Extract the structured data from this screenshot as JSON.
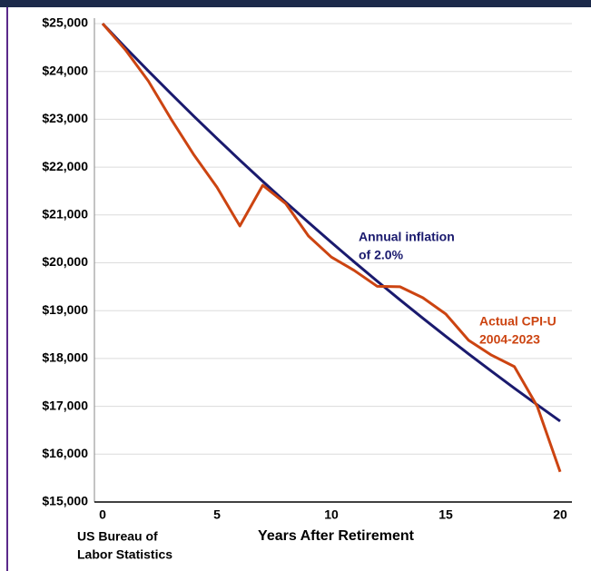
{
  "chart_data": {
    "type": "line",
    "x": [
      0,
      1,
      2,
      3,
      4,
      5,
      6,
      7,
      8,
      9,
      10,
      11,
      12,
      13,
      14,
      15,
      16,
      17,
      18,
      19,
      20
    ],
    "series": [
      {
        "name": "Annual inflation of 2.0%",
        "color": "#1a1a6e",
        "values": [
          25000,
          24500,
          24010,
          23530,
          23059,
          22598,
          22146,
          21703,
          21269,
          20844,
          20427,
          20018,
          19618,
          19225,
          18841,
          18464,
          18095,
          17733,
          17378,
          17031,
          16690
        ]
      },
      {
        "name": "Actual CPI-U 2004-2023",
        "color": "#cc4411",
        "values": [
          25000,
          24450,
          23800,
          23000,
          22250,
          21580,
          20770,
          21620,
          21240,
          20560,
          20120,
          19840,
          19510,
          19500,
          19270,
          18930,
          18380,
          18070,
          17830,
          17000,
          15630
        ]
      }
    ],
    "xlabel": "Years After Retirement",
    "annotations": [
      {
        "lines": [
          "Annual inflation",
          "of 2.0%"
        ]
      },
      {
        "lines": [
          "Actual CPI-U",
          "2004-2023"
        ]
      }
    ],
    "source": [
      "US Bureau of",
      "Labor Statistics"
    ],
    "xlim": [
      0,
      20
    ],
    "xticks": [
      0,
      5,
      10,
      15,
      20
    ],
    "ylim": [
      15000,
      25000
    ],
    "yticks": [
      {
        "value": 15000,
        "label": "$15,000"
      },
      {
        "value": 16000,
        "label": "$16,000"
      },
      {
        "value": 17000,
        "label": "$17,000"
      },
      {
        "value": 18000,
        "label": "$18,000"
      },
      {
        "value": 19000,
        "label": "$19,000"
      },
      {
        "value": 20000,
        "label": "$20,000"
      },
      {
        "value": 21000,
        "label": "$21,000"
      },
      {
        "value": 22000,
        "label": "$22,000"
      },
      {
        "value": 23000,
        "label": "$23,000"
      },
      {
        "value": 24000,
        "label": "$24,000"
      },
      {
        "value": 25000,
        "label": "$25,000"
      }
    ],
    "grid": true
  }
}
